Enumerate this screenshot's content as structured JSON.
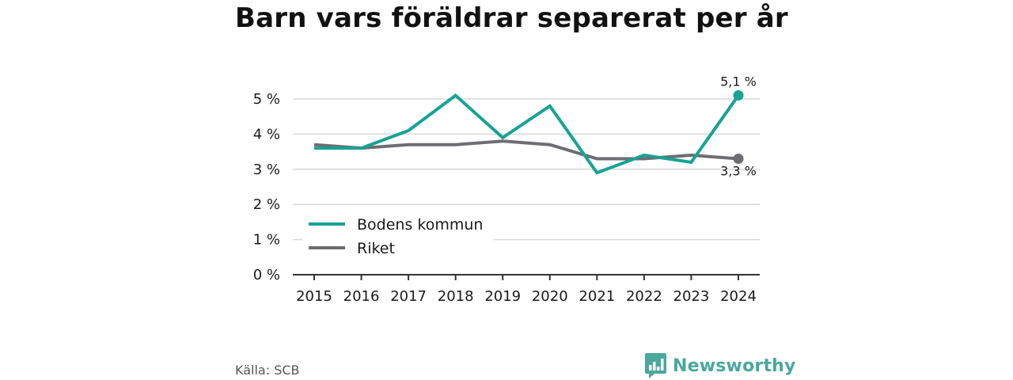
{
  "title": "Barn vars föräldrar separerat per år",
  "source": "Källa: SCB",
  "brand": {
    "name": "Newsworthy",
    "icon": "bar-chart-speech-bubble-icon",
    "color": "#4aa89c"
  },
  "chart_data": {
    "type": "line",
    "x": [
      "2015",
      "2016",
      "2017",
      "2018",
      "2019",
      "2020",
      "2021",
      "2022",
      "2023",
      "2024"
    ],
    "y_ticks": [
      "0 %",
      "1 %",
      "2 %",
      "3 %",
      "4 %",
      "5 %"
    ],
    "ylim": [
      0,
      5
    ],
    "grid": true,
    "legend_position": "bottom-left",
    "series": [
      {
        "name": "Bodens kommun",
        "color": "#16a394",
        "values": [
          3.6,
          3.6,
          4.1,
          5.1,
          3.9,
          4.8,
          2.9,
          3.4,
          3.2,
          5.1
        ],
        "end_label": "5,1 %"
      },
      {
        "name": "Riket",
        "color": "#6e6d72",
        "values": [
          3.7,
          3.6,
          3.7,
          3.7,
          3.8,
          3.7,
          3.3,
          3.3,
          3.4,
          3.3
        ],
        "end_label": "3,3 %"
      }
    ]
  }
}
